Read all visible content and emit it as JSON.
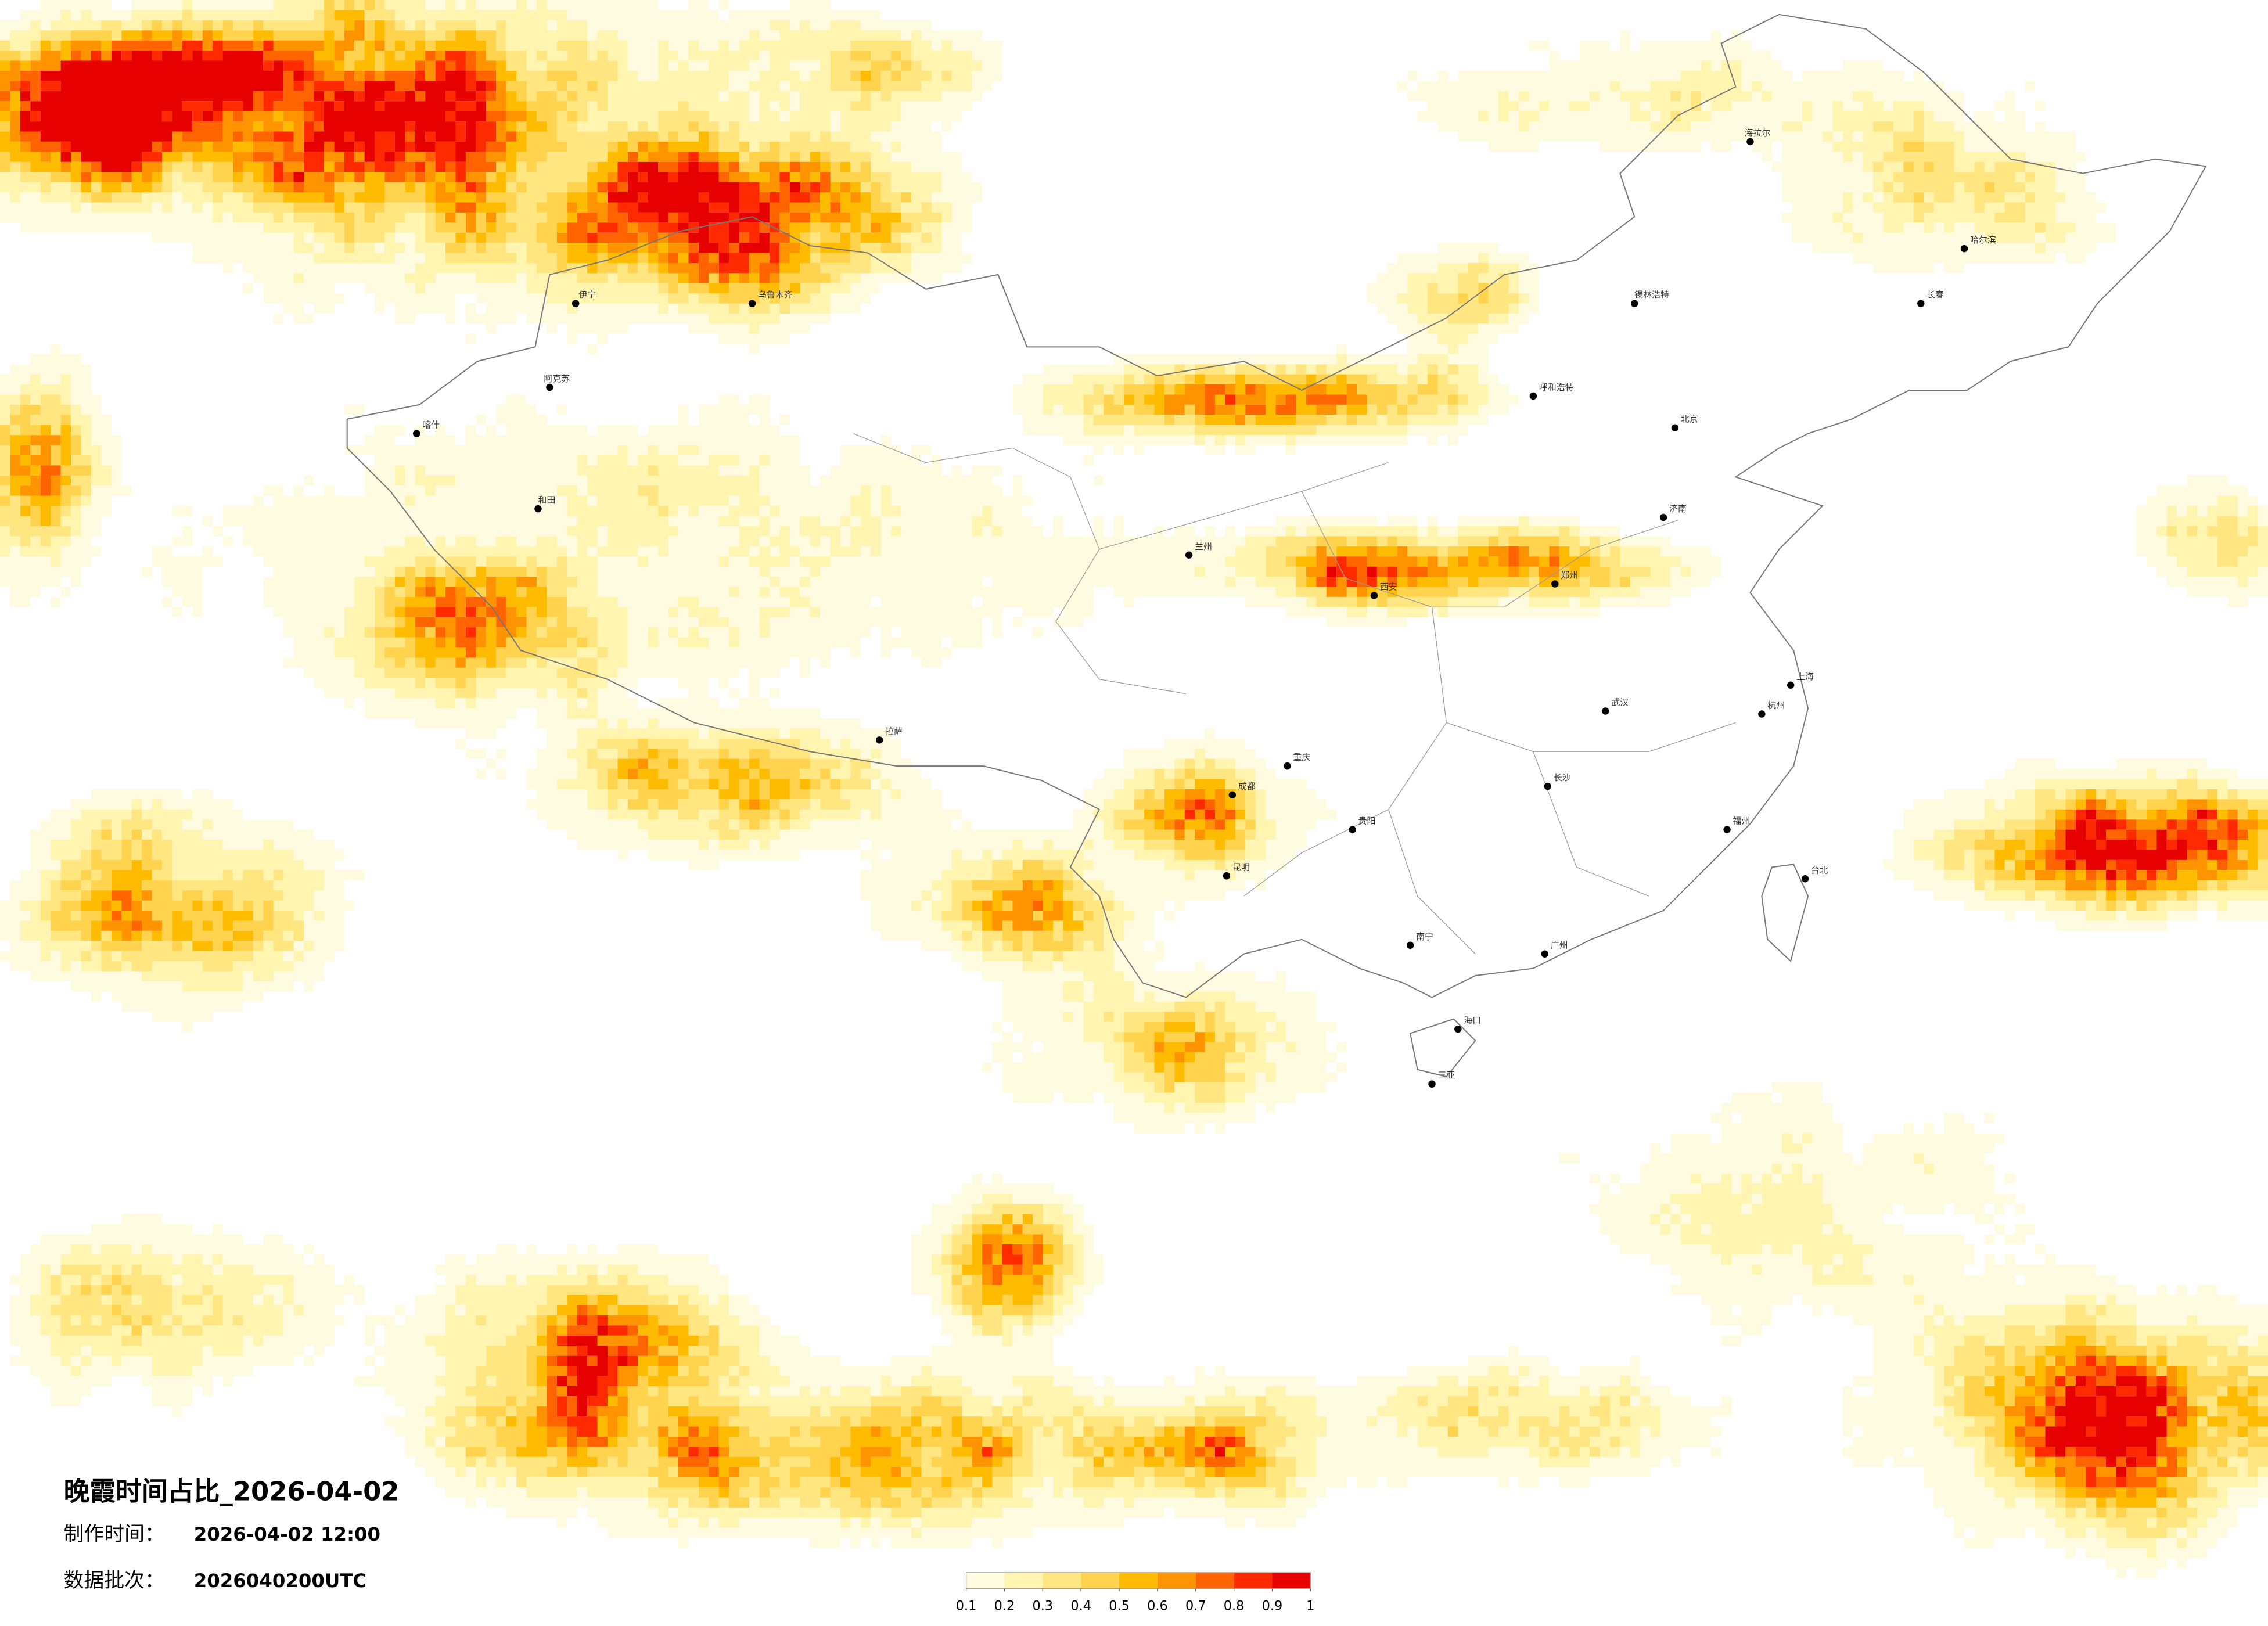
{
  "header": {
    "title": "晚霞时间占比_2026-04-02",
    "made_label": "制作时间：",
    "made_value": "2026-04-02 12:00",
    "batch_label": "数据批次：",
    "batch_value": "2026040200UTC"
  },
  "colorbar": {
    "ticks": [
      0.1,
      0.2,
      0.3,
      0.4,
      0.5,
      0.6,
      0.7,
      0.8,
      0.9,
      1
    ],
    "colors": [
      "#fffbe0",
      "#fff4b0",
      "#ffe680",
      "#ffd34d",
      "#ffbb00",
      "#ff9400",
      "#ff6400",
      "#ff2a00",
      "#e60000"
    ]
  },
  "cities": [
    "北京",
    "上海",
    "广州",
    "成都",
    "西安",
    "武汉",
    "乌鲁木齐",
    "拉萨",
    "哈尔滨",
    "昆明",
    "兰州",
    "呼和浩特",
    "长沙",
    "南宁",
    "海口",
    "台北",
    "长春",
    "喀什",
    "阿克苏",
    "伊宁",
    "和田",
    "海拉尔",
    "锡林浩特",
    "郑州",
    "济南",
    "杭州",
    "福州",
    "重庆",
    "贵阳",
    "三亚"
  ]
}
